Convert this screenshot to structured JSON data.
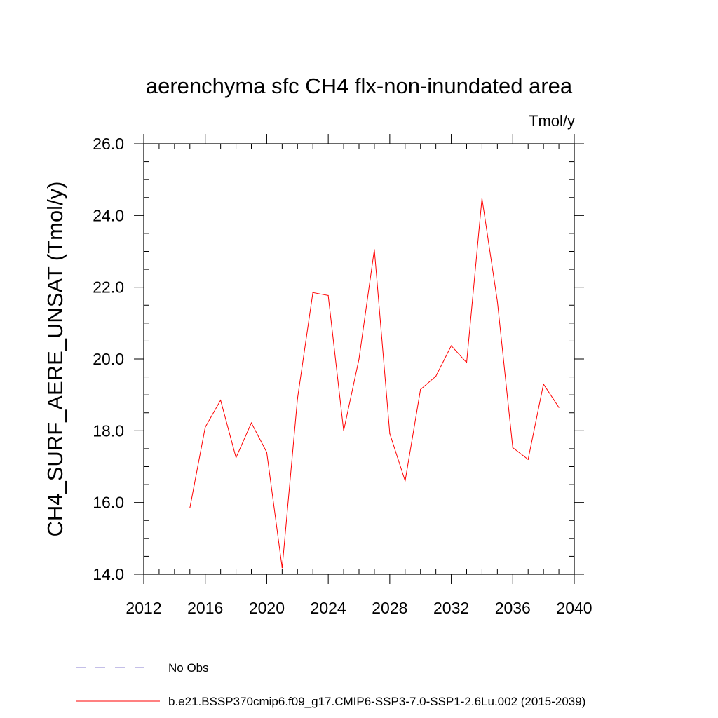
{
  "chart_data": {
    "type": "line",
    "title": "aerenchyma sfc CH4 flx-non-inundated area",
    "units": "Tmol/y",
    "ylabel": "CH4_SURF_AERE_UNSAT  (Tmol/y)",
    "xlim": [
      2012,
      2040
    ],
    "ylim": [
      14.0,
      26.0
    ],
    "x_ticks": [
      "2012",
      "2016",
      "2020",
      "2024",
      "2028",
      "2032",
      "2036",
      "2040"
    ],
    "y_ticks": [
      "14.0",
      "16.0",
      "18.0",
      "20.0",
      "22.0",
      "24.0",
      "26.0"
    ],
    "grid": false,
    "legend_placement": "bottom",
    "series": [
      {
        "name": "b.e21.BSSP370cmip6.f09_g17.CMIP6-SSP3-7.0-SSP1-2.6Lu.002 (2015-2039)",
        "color": "#ff0000",
        "x": [
          2015,
          2016,
          2017,
          2018,
          2019,
          2020,
          2021,
          2022,
          2023,
          2024,
          2025,
          2026,
          2027,
          2028,
          2029,
          2030,
          2031,
          2032,
          2033,
          2034,
          2035,
          2036,
          2037,
          2038,
          2039
        ],
        "values": [
          15.85,
          18.1,
          18.85,
          17.25,
          18.22,
          17.4,
          14.18,
          18.9,
          21.85,
          21.77,
          18.0,
          20.0,
          23.05,
          17.92,
          16.6,
          19.15,
          19.52,
          20.37,
          19.9,
          24.48,
          21.6,
          17.53,
          17.2,
          19.3,
          18.65
        ]
      }
    ],
    "legend": [
      {
        "label": "No Obs",
        "style": "dashed",
        "color": "#8a7fd0"
      },
      {
        "label": "b.e21.BSSP370cmip6.f09_g17.CMIP6-SSP3-7.0-SSP1-2.6Lu.002 (2015-2039)",
        "style": "solid",
        "color": "#ff0000"
      }
    ]
  }
}
